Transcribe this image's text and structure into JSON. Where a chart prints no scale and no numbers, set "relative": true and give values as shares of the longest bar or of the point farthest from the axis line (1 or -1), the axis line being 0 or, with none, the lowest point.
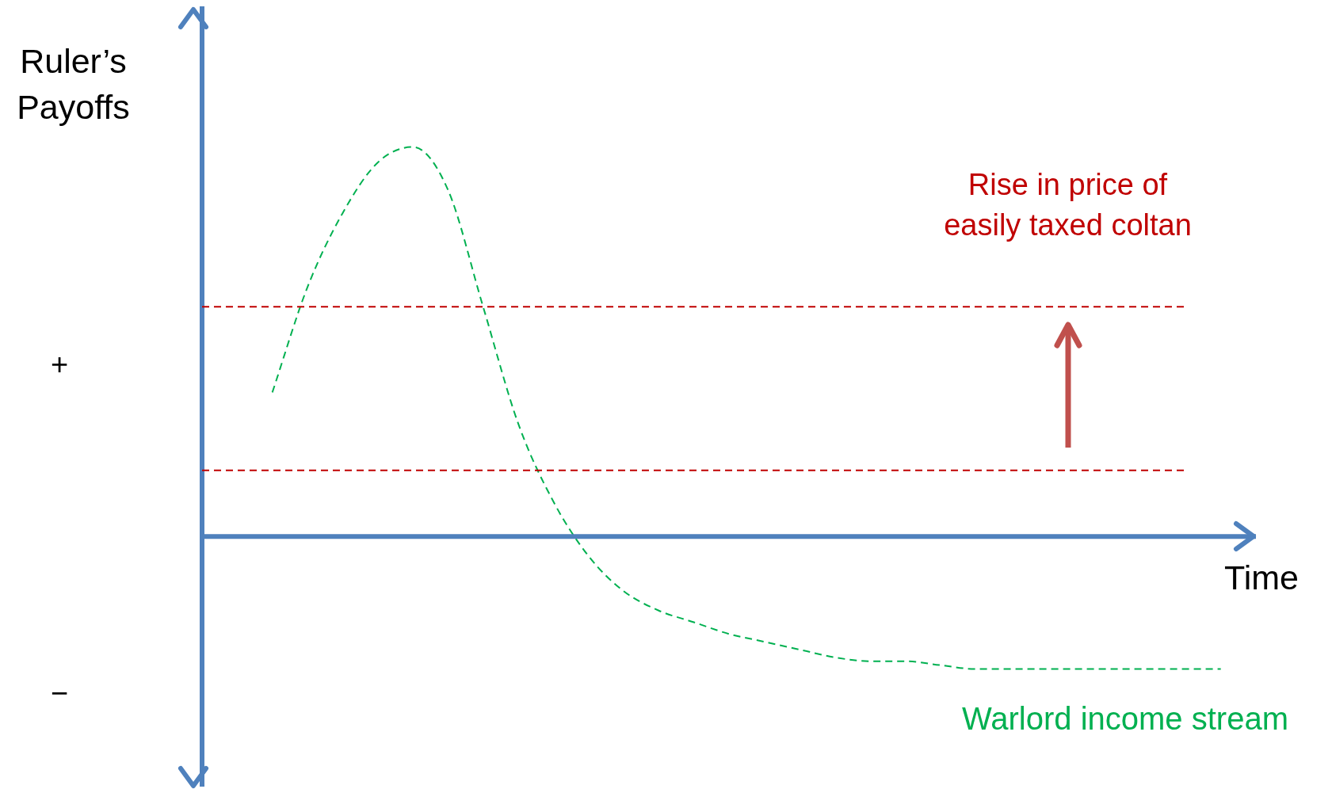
{
  "chart_data": {
    "type": "line",
    "relative": true,
    "ylabel": "Ruler’s Payoffs",
    "xlabel": "Time",
    "categories": [
      null,
      null,
      null,
      null,
      null,
      null,
      null,
      null,
      null,
      null,
      null,
      null,
      null,
      null,
      null,
      null,
      null,
      null,
      null,
      null,
      null,
      null,
      null,
      null,
      null,
      null,
      null,
      null,
      null,
      null,
      null
    ],
    "series": [
      {
        "color": "#c00000",
        "values": [
          0.59,
          0.59,
          0.59,
          0.59,
          0.59,
          0.59,
          0.59,
          0.59,
          0.59,
          0.59,
          0.59,
          0.59,
          0.59,
          0.59,
          0.59,
          0.59,
          0.59,
          0.59,
          0.59,
          0.59,
          0.59,
          0.59,
          0.59,
          0.59,
          0.59,
          0.59,
          0.59,
          0.59,
          0.59,
          null,
          null
        ]
      },
      {
        "color": "#c00000",
        "values": [
          0.17,
          0.17,
          0.17,
          0.17,
          0.17,
          0.17,
          0.17,
          0.17,
          0.17,
          0.17,
          0.17,
          0.17,
          0.17,
          0.17,
          0.17,
          0.17,
          0.17,
          0.17,
          0.17,
          0.17,
          0.17,
          0.17,
          0.17,
          0.17,
          0.17,
          0.17,
          0.17,
          0.17,
          0.17,
          null,
          null
        ]
      },
      {
        "name": "Warlord income stream",
        "color": "#00b050",
        "values": [
          null,
          null,
          0.37,
          0.64,
          0.83,
          0.96,
          1,
          0.89,
          0.59,
          0.29,
          0.09,
          -0.05,
          -0.14,
          -0.19,
          -0.22,
          -0.25,
          -0.27,
          -0.29,
          -0.31,
          -0.32,
          -0.32,
          -0.33,
          -0.34,
          -0.34,
          -0.34,
          -0.34,
          -0.34,
          -0.34,
          -0.34,
          -0.34,
          null
        ]
      }
    ],
    "line_style": "dashed",
    "marker": "none",
    "ref_lines": [
      {
        "axis": "y",
        "value": 0,
        "color": "#4f81bd"
      }
    ],
    "annotations": [
      "+",
      "−",
      "Rise in price of easily taxed coltan"
    ]
  }
}
